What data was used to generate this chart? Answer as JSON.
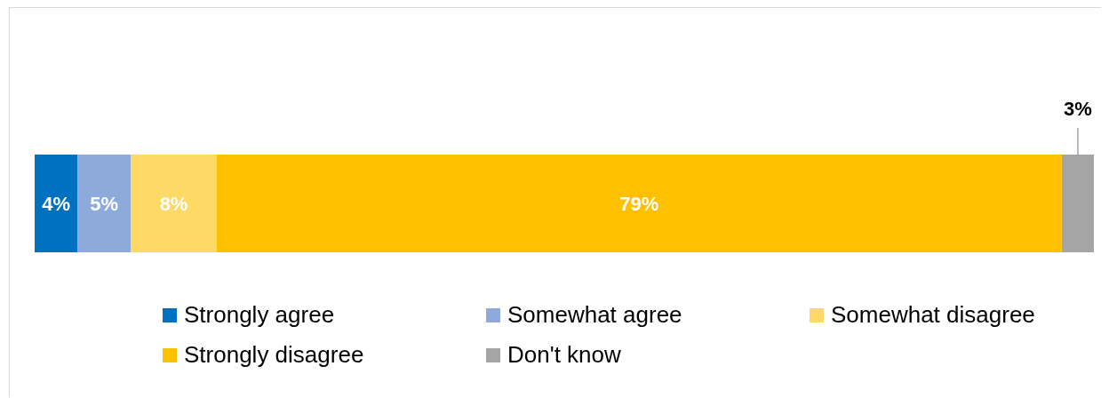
{
  "chart_data": {
    "type": "bar",
    "orientation": "horizontal",
    "stacked": true,
    "categories": [
      null
    ],
    "legend": "bottom",
    "series": [
      {
        "name": "Strongly agree",
        "color": "#0070c0",
        "values": [
          4
        ],
        "value_labels": [
          "4%"
        ]
      },
      {
        "name": "Somewhat agree",
        "color": "#8eaadb",
        "values": [
          5
        ],
        "value_labels": [
          "5%"
        ]
      },
      {
        "name": "Somewhat disagree",
        "color": "#ffd966",
        "values": [
          8
        ],
        "value_labels": [
          "8%"
        ]
      },
      {
        "name": "Strongly disagree",
        "color": "#ffc000",
        "values": [
          79
        ],
        "value_labels": [
          "79%"
        ]
      },
      {
        "name": "Don't know",
        "color": "#a5a5a5",
        "values": [
          3
        ],
        "value_labels": [
          "3%"
        ]
      }
    ]
  }
}
